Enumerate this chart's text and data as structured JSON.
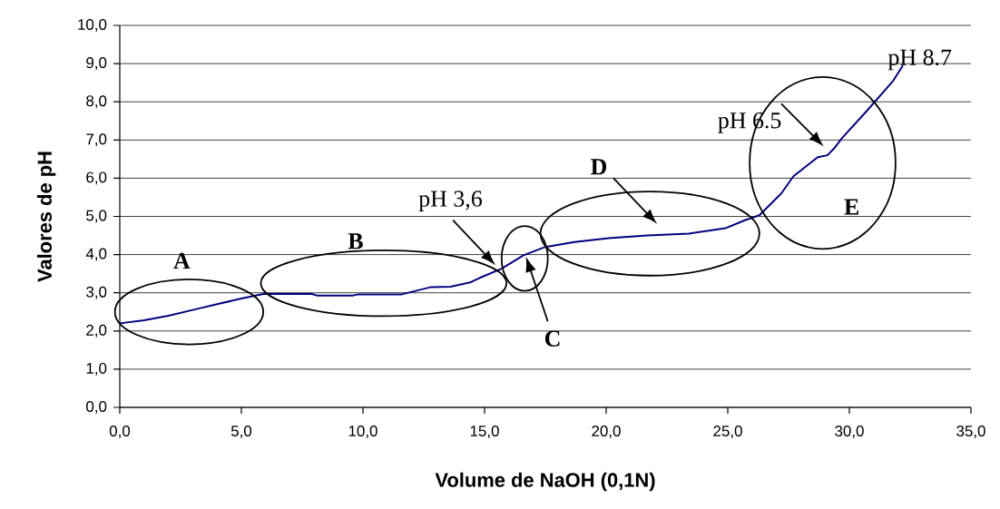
{
  "chart_data": {
    "type": "line",
    "xlabel": "Volume de NaOH (0,1N)",
    "ylabel": "Valores de pH",
    "x": [
      0,
      1,
      2,
      3,
      4,
      5,
      5.9,
      7.9,
      8.1,
      9.6,
      9.8,
      11.6,
      12.8,
      13.6,
      14.4,
      14.8,
      15.7,
      16.6,
      17.5,
      18.7,
      20.1,
      21.7,
      23.4,
      24.9,
      25.7,
      26.3,
      27.2,
      27.7,
      28.2,
      28.7,
      29.1,
      29.4,
      29.7,
      30.7,
      31.8,
      32.2
    ],
    "series": [
      {
        "color": "#000080",
        "values": [
          2.2,
          2.28,
          2.4,
          2.55,
          2.7,
          2.85,
          2.97,
          2.97,
          2.93,
          2.93,
          2.96,
          2.96,
          3.15,
          3.16,
          3.27,
          3.39,
          3.63,
          3.98,
          4.2,
          4.33,
          4.43,
          4.5,
          4.55,
          4.69,
          4.9,
          5.03,
          5.6,
          6.05,
          6.3,
          6.55,
          6.6,
          6.8,
          7.05,
          7.75,
          8.55,
          8.95
        ]
      }
    ],
    "xlim": [
      0,
      35
    ],
    "ylim": [
      0,
      10
    ],
    "xticks": [
      {
        "value": 0,
        "label": "0,0"
      },
      {
        "value": 5,
        "label": "5,0"
      },
      {
        "value": 10,
        "label": "10,0"
      },
      {
        "value": 15,
        "label": "15,0"
      },
      {
        "value": 20,
        "label": "20,0"
      },
      {
        "value": 25,
        "label": "25,0"
      },
      {
        "value": 30,
        "label": "30,0"
      },
      {
        "value": 35,
        "label": "35,0"
      }
    ],
    "yticks": [
      {
        "value": 0,
        "label": "0,0"
      },
      {
        "value": 1,
        "label": "1,0"
      },
      {
        "value": 2,
        "label": "2,0"
      },
      {
        "value": 3,
        "label": "3,0"
      },
      {
        "value": 4,
        "label": "4,0"
      },
      {
        "value": 5,
        "label": "5,0"
      },
      {
        "value": 6,
        "label": "6,0"
      },
      {
        "value": 7,
        "label": "7,0"
      },
      {
        "value": 8,
        "label": "8,0"
      },
      {
        "value": 9,
        "label": "9,0"
      },
      {
        "value": 10,
        "label": "10,0"
      }
    ],
    "grid": "y",
    "marker": "none",
    "line_style": "solid",
    "annotations": [
      "**A**",
      "**B**",
      {
        "text": "pH 3,6",
        "x": 15.5,
        "y": 3.55
      },
      "**C**",
      "**D**",
      {
        "text": "pH 6.5",
        "x": 28.95,
        "y": 6.6
      },
      "**E**",
      {
        "text": "pH 8.7",
        "x": 32.2,
        "y": 8.95
      }
    ]
  }
}
